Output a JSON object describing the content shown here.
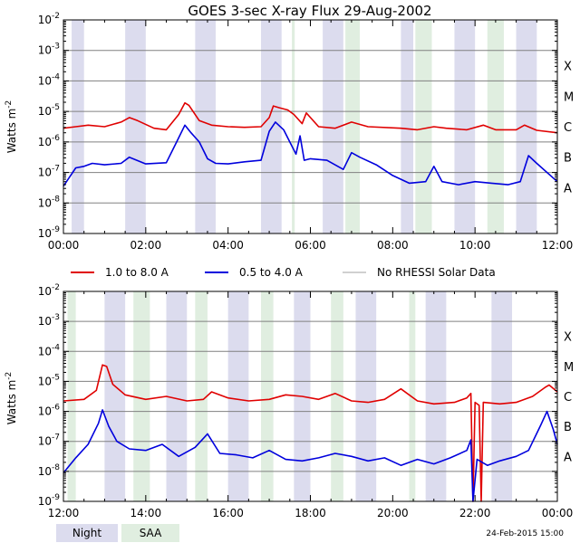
{
  "chart_data": [
    {
      "type": "line",
      "id": "top",
      "title": "GOES 3-sec X-ray Flux   29-Aug-2002",
      "ylabel": "Watts m",
      "ylabel_sup": "-2",
      "x_range": [
        0,
        12
      ],
      "y_range_log10": [
        -9,
        -2
      ],
      "x_ticks": [
        "00:00",
        "02:00",
        "04:00",
        "06:00",
        "08:00",
        "10:00",
        "12:00"
      ],
      "y_ticks": [
        {
          "base": "10",
          "exp": "-2"
        },
        {
          "base": "10",
          "exp": "-3"
        },
        {
          "base": "10",
          "exp": "-4"
        },
        {
          "base": "10",
          "exp": "-5"
        },
        {
          "base": "10",
          "exp": "-6"
        },
        {
          "base": "10",
          "exp": "-7"
        },
        {
          "base": "10",
          "exp": "-8"
        },
        {
          "base": "10",
          "exp": "-9"
        }
      ],
      "flare_classes": [
        "X",
        "M",
        "C",
        "B",
        "A"
      ],
      "night_bands": [
        [
          0.2,
          0.5
        ],
        [
          1.5,
          2.0
        ],
        [
          3.2,
          3.7
        ],
        [
          4.8,
          5.3
        ],
        [
          6.3,
          6.8
        ],
        [
          8.2,
          8.5
        ],
        [
          9.5,
          10.0
        ],
        [
          11.0,
          11.5
        ]
      ],
      "saa_bands": [
        [
          5.55,
          5.62
        ],
        [
          6.85,
          7.2
        ],
        [
          8.55,
          8.95
        ],
        [
          10.3,
          10.7
        ]
      ],
      "series": [
        {
          "name": "1.0 to 8.0 A",
          "color": "#e00000",
          "points": [
            [
              0,
              -5.55
            ],
            [
              0.3,
              -5.5
            ],
            [
              0.6,
              -5.45
            ],
            [
              1.0,
              -5.5
            ],
            [
              1.4,
              -5.35
            ],
            [
              1.6,
              -5.2
            ],
            [
              1.8,
              -5.3
            ],
            [
              2.2,
              -5.55
            ],
            [
              2.5,
              -5.6
            ],
            [
              2.8,
              -5.1
            ],
            [
              2.95,
              -4.72
            ],
            [
              3.05,
              -4.8
            ],
            [
              3.3,
              -5.3
            ],
            [
              3.6,
              -5.45
            ],
            [
              4.0,
              -5.5
            ],
            [
              4.4,
              -5.52
            ],
            [
              4.8,
              -5.5
            ],
            [
              5.0,
              -5.2
            ],
            [
              5.1,
              -4.82
            ],
            [
              5.25,
              -4.88
            ],
            [
              5.45,
              -4.95
            ],
            [
              5.6,
              -5.1
            ],
            [
              5.8,
              -5.4
            ],
            [
              5.9,
              -5.05
            ],
            [
              6.2,
              -5.5
            ],
            [
              6.6,
              -5.55
            ],
            [
              7.0,
              -5.35
            ],
            [
              7.4,
              -5.5
            ],
            [
              8.2,
              -5.55
            ],
            [
              8.6,
              -5.6
            ],
            [
              9.0,
              -5.5
            ],
            [
              9.3,
              -5.55
            ],
            [
              9.8,
              -5.6
            ],
            [
              10.2,
              -5.45
            ],
            [
              10.5,
              -5.6
            ],
            [
              11.0,
              -5.6
            ],
            [
              11.2,
              -5.45
            ],
            [
              11.5,
              -5.62
            ],
            [
              12.0,
              -5.7
            ]
          ]
        },
        {
          "name": "0.5 to 4.0 A",
          "color": "#0000dd",
          "points": [
            [
              0,
              -7.45
            ],
            [
              0.3,
              -6.85
            ],
            [
              0.5,
              -6.8
            ],
            [
              0.7,
              -6.7
            ],
            [
              1.0,
              -6.75
            ],
            [
              1.4,
              -6.7
            ],
            [
              1.6,
              -6.5
            ],
            [
              2.0,
              -6.72
            ],
            [
              2.5,
              -6.68
            ],
            [
              2.75,
              -6.0
            ],
            [
              2.95,
              -5.45
            ],
            [
              3.1,
              -5.7
            ],
            [
              3.3,
              -6.0
            ],
            [
              3.5,
              -6.55
            ],
            [
              3.7,
              -6.7
            ],
            [
              4.0,
              -6.72
            ],
            [
              4.4,
              -6.65
            ],
            [
              4.8,
              -6.6
            ],
            [
              5.0,
              -5.65
            ],
            [
              5.15,
              -5.35
            ],
            [
              5.35,
              -5.6
            ],
            [
              5.5,
              -6.0
            ],
            [
              5.65,
              -6.4
            ],
            [
              5.75,
              -5.8
            ],
            [
              5.85,
              -6.6
            ],
            [
              6.0,
              -6.55
            ],
            [
              6.4,
              -6.6
            ],
            [
              6.8,
              -6.9
            ],
            [
              7.0,
              -6.35
            ],
            [
              7.2,
              -6.5
            ],
            [
              7.6,
              -6.75
            ],
            [
              8.0,
              -7.1
            ],
            [
              8.4,
              -7.35
            ],
            [
              8.8,
              -7.3
            ],
            [
              9.0,
              -6.8
            ],
            [
              9.2,
              -7.3
            ],
            [
              9.6,
              -7.4
            ],
            [
              10.0,
              -7.3
            ],
            [
              10.4,
              -7.35
            ],
            [
              10.8,
              -7.4
            ],
            [
              11.1,
              -7.3
            ],
            [
              11.3,
              -6.45
            ],
            [
              11.5,
              -6.7
            ],
            [
              12.0,
              -7.3
            ]
          ]
        },
        {
          "name": "No RHESSI Solar Data",
          "color": "#a0a0a0",
          "points": []
        }
      ]
    },
    {
      "type": "line",
      "id": "bottom",
      "ylabel": "Watts m",
      "ylabel_sup": "-2",
      "x_range": [
        12,
        24
      ],
      "y_range_log10": [
        -9,
        -2
      ],
      "x_ticks": [
        "12:00",
        "14:00",
        "16:00",
        "18:00",
        "20:00",
        "22:00",
        "00:00"
      ],
      "y_ticks": [
        {
          "base": "10",
          "exp": "-2"
        },
        {
          "base": "10",
          "exp": "-3"
        },
        {
          "base": "10",
          "exp": "-4"
        },
        {
          "base": "10",
          "exp": "-5"
        },
        {
          "base": "10",
          "exp": "-6"
        },
        {
          "base": "10",
          "exp": "-7"
        },
        {
          "base": "10",
          "exp": "-8"
        },
        {
          "base": "10",
          "exp": "-9"
        }
      ],
      "flare_classes": [
        "X",
        "M",
        "C",
        "B",
        "A"
      ],
      "night_bands": [
        [
          13.0,
          13.5
        ],
        [
          14.5,
          15.0
        ],
        [
          16.0,
          16.5
        ],
        [
          17.6,
          18.0
        ],
        [
          19.1,
          19.6
        ],
        [
          20.8,
          21.3
        ],
        [
          22.4,
          22.9
        ]
      ],
      "saa_bands": [
        [
          12.1,
          12.3
        ],
        [
          13.7,
          14.1
        ],
        [
          15.2,
          15.5
        ],
        [
          16.8,
          17.1
        ],
        [
          18.5,
          18.8
        ],
        [
          20.4,
          20.55
        ]
      ],
      "series": [
        {
          "name": "1.0 to 8.0 A",
          "color": "#e00000",
          "points": [
            [
              12.0,
              -5.65
            ],
            [
              12.5,
              -5.6
            ],
            [
              12.8,
              -5.3
            ],
            [
              12.95,
              -4.45
            ],
            [
              13.05,
              -4.5
            ],
            [
              13.2,
              -5.1
            ],
            [
              13.5,
              -5.45
            ],
            [
              14.0,
              -5.6
            ],
            [
              14.5,
              -5.5
            ],
            [
              15.0,
              -5.65
            ],
            [
              15.4,
              -5.6
            ],
            [
              15.6,
              -5.35
            ],
            [
              16.0,
              -5.55
            ],
            [
              16.5,
              -5.65
            ],
            [
              17.0,
              -5.6
            ],
            [
              17.4,
              -5.45
            ],
            [
              17.8,
              -5.5
            ],
            [
              18.2,
              -5.6
            ],
            [
              18.6,
              -5.4
            ],
            [
              19.0,
              -5.65
            ],
            [
              19.4,
              -5.7
            ],
            [
              19.8,
              -5.6
            ],
            [
              20.2,
              -5.25
            ],
            [
              20.6,
              -5.65
            ],
            [
              21.0,
              -5.75
            ],
            [
              21.5,
              -5.7
            ],
            [
              21.8,
              -5.55
            ],
            [
              21.9,
              -5.4
            ],
            [
              21.95,
              -9.2
            ],
            [
              22.0,
              -5.7
            ],
            [
              22.1,
              -5.8
            ],
            [
              22.15,
              -9.2
            ],
            [
              22.2,
              -5.7
            ],
            [
              22.6,
              -5.75
            ],
            [
              23.0,
              -5.7
            ],
            [
              23.4,
              -5.5
            ],
            [
              23.7,
              -5.2
            ],
            [
              23.8,
              -5.12
            ],
            [
              24.0,
              -5.35
            ]
          ]
        },
        {
          "name": "0.5 to 4.0 A",
          "color": "#0000dd",
          "points": [
            [
              12.0,
              -8.05
            ],
            [
              12.3,
              -7.55
            ],
            [
              12.6,
              -7.1
            ],
            [
              12.85,
              -6.4
            ],
            [
              12.95,
              -5.95
            ],
            [
              13.1,
              -6.5
            ],
            [
              13.3,
              -7.0
            ],
            [
              13.6,
              -7.25
            ],
            [
              14.0,
              -7.3
            ],
            [
              14.4,
              -7.1
            ],
            [
              14.8,
              -7.5
            ],
            [
              15.2,
              -7.2
            ],
            [
              15.5,
              -6.75
            ],
            [
              15.8,
              -7.4
            ],
            [
              16.2,
              -7.45
            ],
            [
              16.6,
              -7.55
            ],
            [
              17.0,
              -7.3
            ],
            [
              17.4,
              -7.6
            ],
            [
              17.8,
              -7.65
            ],
            [
              18.2,
              -7.55
            ],
            [
              18.6,
              -7.4
            ],
            [
              19.0,
              -7.5
            ],
            [
              19.4,
              -7.65
            ],
            [
              19.8,
              -7.55
            ],
            [
              20.2,
              -7.8
            ],
            [
              20.6,
              -7.6
            ],
            [
              21.0,
              -7.75
            ],
            [
              21.4,
              -7.55
            ],
            [
              21.8,
              -7.3
            ],
            [
              21.9,
              -6.95
            ],
            [
              21.95,
              -9.2
            ],
            [
              22.05,
              -7.6
            ],
            [
              22.3,
              -7.8
            ],
            [
              22.6,
              -7.65
            ],
            [
              23.0,
              -7.5
            ],
            [
              23.3,
              -7.3
            ],
            [
              23.6,
              -6.45
            ],
            [
              23.75,
              -6.0
            ],
            [
              23.9,
              -6.6
            ],
            [
              24.0,
              -7.1
            ]
          ]
        },
        {
          "name": "No RHESSI Solar Data",
          "color": "#a0a0a0",
          "points": []
        }
      ]
    }
  ],
  "legend": {
    "entries": [
      {
        "label": "1.0 to 8.0 A",
        "color": "#e00000"
      },
      {
        "label": "0.5 to 4.0 A",
        "color": "#0000dd"
      },
      {
        "label": "No RHESSI Solar Data",
        "color": "#a0a0a0"
      }
    ]
  },
  "footer": {
    "night_label": "Night",
    "saa_label": "SAA",
    "night_color": "#dcdcee",
    "saa_color": "#e0eee0",
    "timestamp": "24-Feb-2015 15:00"
  }
}
